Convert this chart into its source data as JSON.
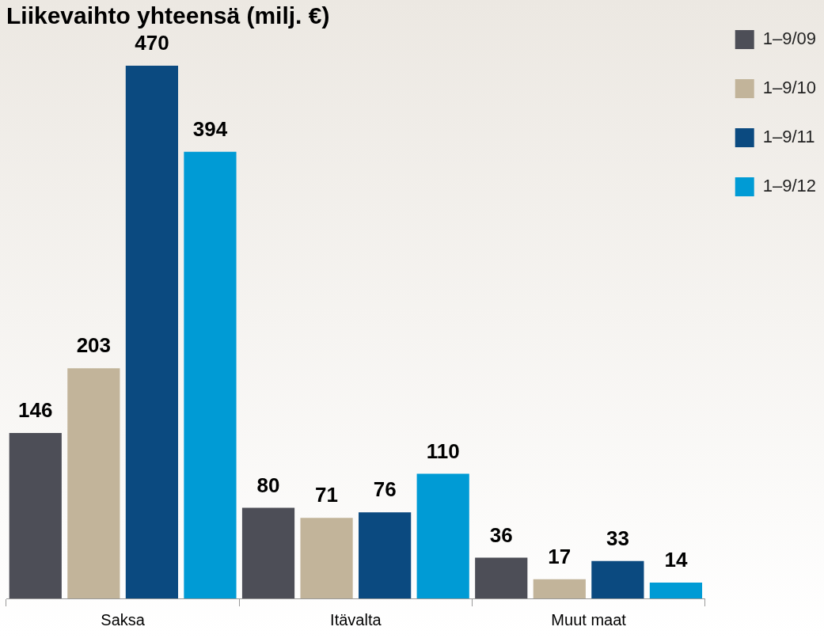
{
  "chart_data": {
    "type": "bar",
    "title": "Liikevaihto yhteensä (milj. €)",
    "categories": [
      "Saksa",
      "Itävalta",
      "Muut maat"
    ],
    "series": [
      {
        "name": "1–9/09",
        "color": "#4d4e57",
        "values": [
          146,
          80,
          36
        ]
      },
      {
        "name": "1–9/10",
        "color": "#c2b49a",
        "values": [
          203,
          71,
          17
        ]
      },
      {
        "name": "1–9/11",
        "color": "#0b4a80",
        "values": [
          470,
          76,
          33
        ]
      },
      {
        "name": "1–9/12",
        "color": "#009bd5",
        "values": [
          394,
          110,
          14
        ]
      }
    ],
    "data_labels": true,
    "grid": false,
    "legend": "top right"
  }
}
